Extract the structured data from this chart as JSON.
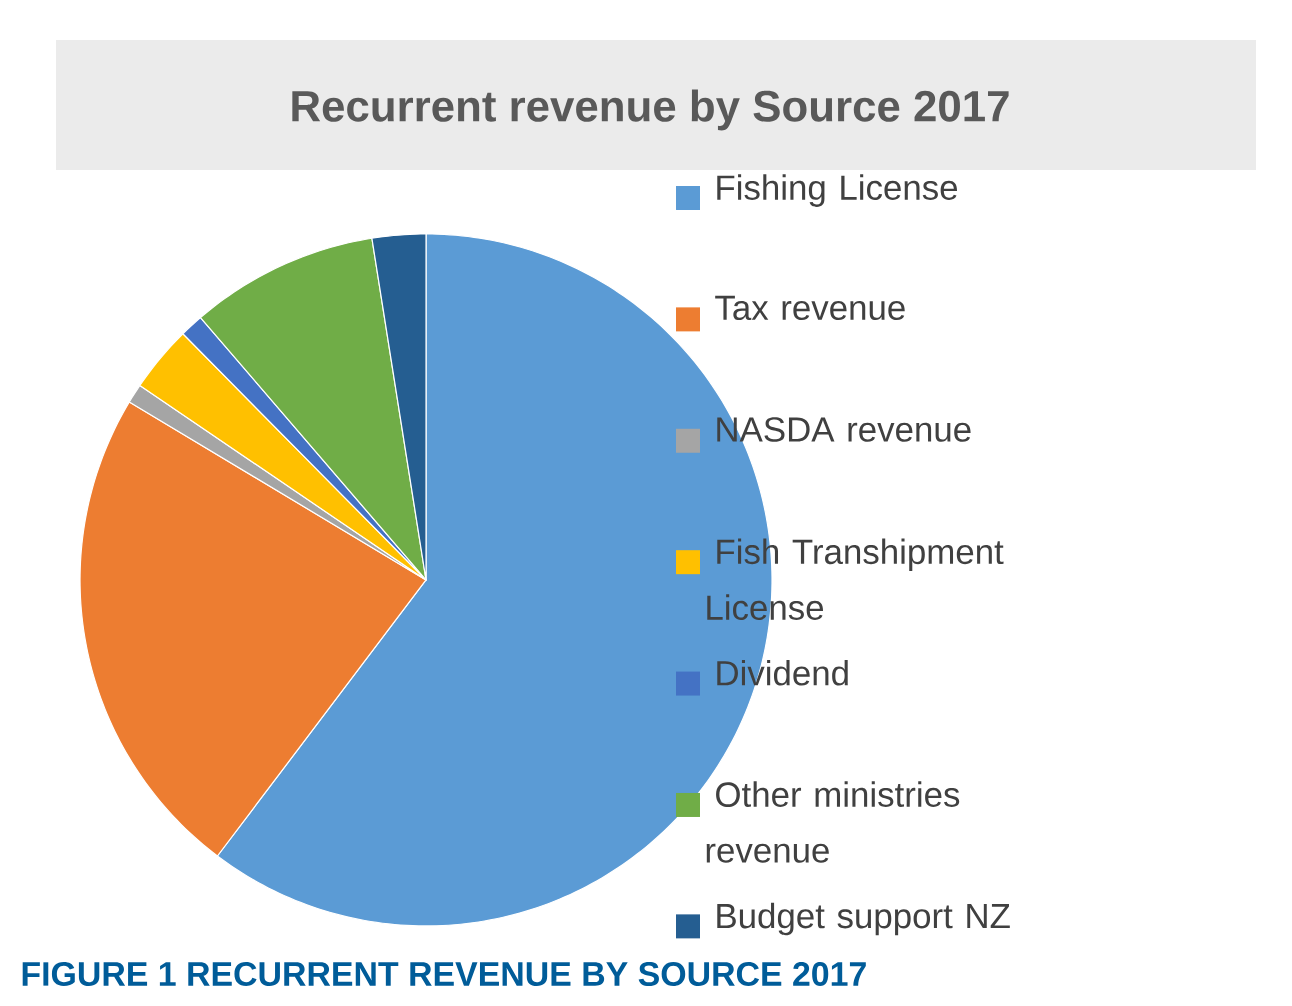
{
  "chart_data": {
    "type": "pie",
    "title": "Recurrent revenue by Source 2017",
    "categories": [
      "Fishing License",
      "Tax revenue",
      "NASDA revenue",
      "Fish Transhipment License",
      "Dividend",
      "Other ministries revenue",
      "Budget support NZ"
    ],
    "values": [
      60.3,
      23.3,
      0.9,
      3.1,
      1.1,
      8.8,
      2.5
    ],
    "colors": [
      "#5b9bd5",
      "#ed7d31",
      "#a5a5a5",
      "#ffc000",
      "#4472c4",
      "#70ad47",
      "#255e91"
    ],
    "legend": "right",
    "annotations": [
      "FIGURE 1 RECURRENT REVENUE BY SOURCE 2017"
    ]
  }
}
